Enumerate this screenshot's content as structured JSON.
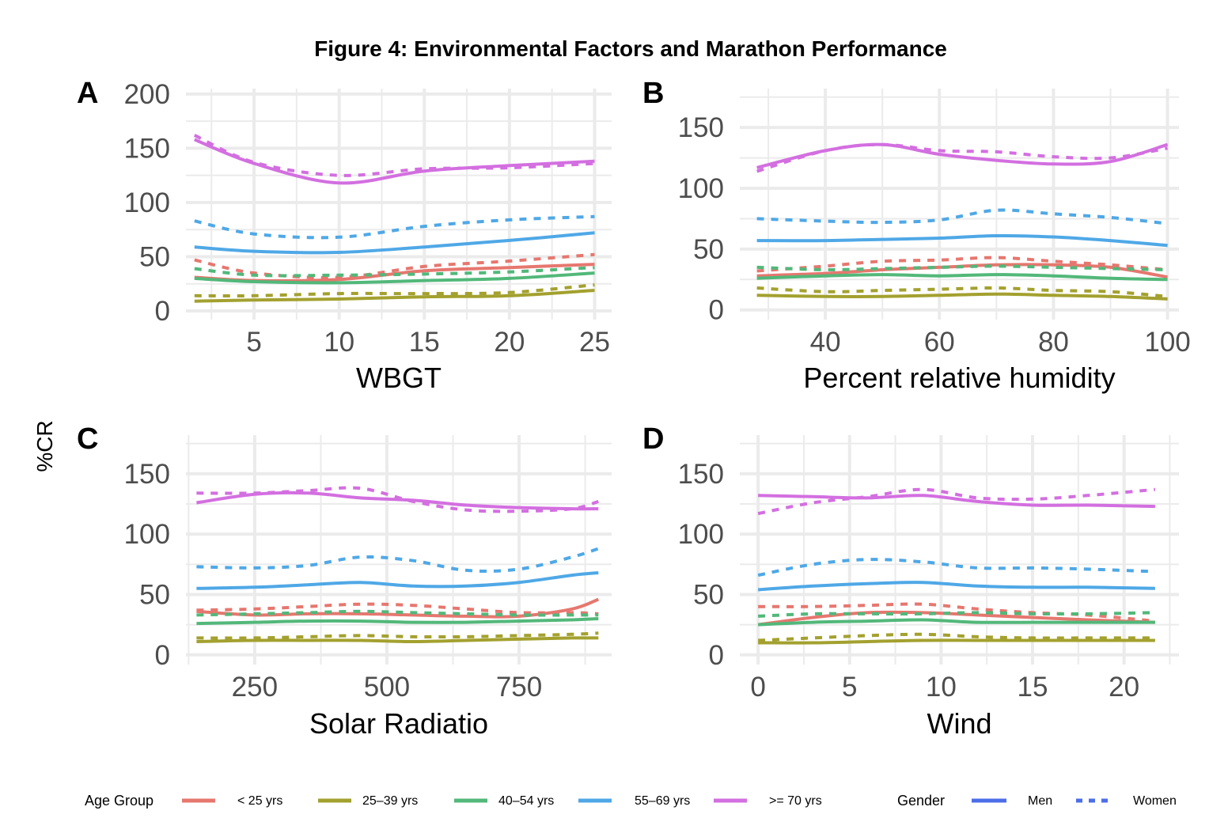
{
  "title": "Figure 4: Environmental Factors and Marathon Performance",
  "y_axis_label": "%CR",
  "colors": {
    "< 25 yrs": "#e6776f",
    "25–39 yrs": "#a3a12f",
    "40–54 yrs": "#52b87a",
    "55–69 yrs": "#4fa8e6",
    ">= 70 yrs": "#d36fe0",
    "gender_legend": "#4c6ee8"
  },
  "legend": {
    "age_title": "Age Group",
    "age_items": [
      "< 25 yrs",
      "25–39 yrs",
      "40–54 yrs",
      "55–69 yrs",
      ">= 70 yrs"
    ],
    "gender_title": "Gender",
    "gender_items": [
      {
        "label": "Men",
        "style": "solid"
      },
      {
        "label": "Women",
        "style": "dashed"
      }
    ]
  },
  "chart_data": [
    {
      "panel": "A",
      "type": "line",
      "xlabel": "WBGT",
      "xlim": [
        1,
        26
      ],
      "ylim": [
        -8,
        205
      ],
      "xticks": [
        5,
        10,
        15,
        20,
        25
      ],
      "yticks": [
        0,
        50,
        100,
        150,
        200
      ],
      "x": [
        1.5,
        5,
        10,
        15,
        20,
        25
      ],
      "series": [
        {
          "group": "< 25 yrs",
          "gender": "Men",
          "values": [
            31,
            28,
            29,
            37,
            40,
            43
          ]
        },
        {
          "group": "< 25 yrs",
          "gender": "Women",
          "values": [
            47,
            35,
            31,
            41,
            46,
            52
          ]
        },
        {
          "group": "25–39 yrs",
          "gender": "Men",
          "values": [
            9,
            10,
            11,
            13,
            14,
            19
          ]
        },
        {
          "group": "25–39 yrs",
          "gender": "Women",
          "values": [
            14,
            14,
            16,
            16,
            17,
            24
          ]
        },
        {
          "group": "40–54 yrs",
          "gender": "Men",
          "values": [
            30,
            27,
            26,
            28,
            30,
            35
          ]
        },
        {
          "group": "40–54 yrs",
          "gender": "Women",
          "values": [
            39,
            33,
            33,
            34,
            36,
            40
          ]
        },
        {
          "group": "55–69 yrs",
          "gender": "Men",
          "values": [
            59,
            55,
            54,
            59,
            65,
            72
          ]
        },
        {
          "group": "55–69 yrs",
          "gender": "Women",
          "values": [
            83,
            71,
            68,
            78,
            84,
            87
          ]
        },
        {
          "group": ">= 70 yrs",
          "gender": "Men",
          "values": [
            158,
            136,
            118,
            129,
            134,
            138
          ]
        },
        {
          "group": ">= 70 yrs",
          "gender": "Women",
          "values": [
            162,
            137,
            125,
            131,
            132,
            136
          ]
        }
      ]
    },
    {
      "panel": "B",
      "type": "line",
      "xlabel": "Percent relative humidity",
      "xlim": [
        25,
        102
      ],
      "ylim": [
        -8,
        182
      ],
      "xticks": [
        40,
        60,
        80,
        100
      ],
      "yticks": [
        0,
        50,
        100,
        150
      ],
      "x": [
        28,
        40,
        50,
        60,
        70,
        80,
        90,
        100
      ],
      "series": [
        {
          "group": "< 25 yrs",
          "gender": "Men",
          "values": [
            28,
            30,
            33,
            35,
            37,
            37,
            35,
            27
          ]
        },
        {
          "group": "< 25 yrs",
          "gender": "Women",
          "values": [
            32,
            36,
            40,
            41,
            43,
            40,
            37,
            33
          ]
        },
        {
          "group": "25–39 yrs",
          "gender": "Men",
          "values": [
            12,
            11,
            11,
            12,
            13,
            12,
            11,
            9
          ]
        },
        {
          "group": "25–39 yrs",
          "gender": "Women",
          "values": [
            18,
            15,
            16,
            17,
            18,
            16,
            15,
            11
          ]
        },
        {
          "group": "40–54 yrs",
          "gender": "Men",
          "values": [
            26,
            28,
            29,
            28,
            29,
            28,
            26,
            25
          ]
        },
        {
          "group": "40–54 yrs",
          "gender": "Women",
          "values": [
            35,
            33,
            34,
            35,
            36,
            35,
            34,
            33
          ]
        },
        {
          "group": "55–69 yrs",
          "gender": "Men",
          "values": [
            57,
            57,
            58,
            59,
            61,
            60,
            57,
            53
          ]
        },
        {
          "group": "55–69 yrs",
          "gender": "Women",
          "values": [
            75,
            73,
            72,
            74,
            82,
            79,
            76,
            71
          ]
        },
        {
          "group": ">= 70 yrs",
          "gender": "Men",
          "values": [
            117,
            131,
            136,
            128,
            123,
            120,
            122,
            136
          ]
        },
        {
          "group": ">= 70 yrs",
          "gender": "Women",
          "values": [
            114,
            131,
            136,
            131,
            130,
            126,
            125,
            133
          ]
        }
      ]
    },
    {
      "panel": "C",
      "type": "line",
      "xlabel": "Solar Radiatio",
      "xlim": [
        120,
        925
      ],
      "ylim": [
        -8,
        182
      ],
      "xticks": [
        250,
        500,
        750
      ],
      "yticks": [
        0,
        50,
        100,
        150
      ],
      "x": [
        140,
        250,
        350,
        450,
        550,
        650,
        750,
        850,
        900
      ],
      "series": [
        {
          "group": "< 25 yrs",
          "gender": "Men",
          "values": [
            36,
            33,
            34,
            34,
            33,
            32,
            32,
            38,
            46
          ]
        },
        {
          "group": "< 25 yrs",
          "gender": "Women",
          "values": [
            37,
            38,
            40,
            42,
            41,
            38,
            35,
            35,
            34
          ]
        },
        {
          "group": "25–39 yrs",
          "gender": "Men",
          "values": [
            11,
            12,
            12,
            12,
            11,
            12,
            13,
            14,
            14
          ]
        },
        {
          "group": "25–39 yrs",
          "gender": "Women",
          "values": [
            14,
            14,
            15,
            16,
            15,
            15,
            16,
            17,
            18
          ]
        },
        {
          "group": "40–54 yrs",
          "gender": "Men",
          "values": [
            26,
            27,
            28,
            28,
            27,
            27,
            28,
            29,
            30
          ]
        },
        {
          "group": "40–54 yrs",
          "gender": "Women",
          "values": [
            33,
            34,
            35,
            36,
            35,
            34,
            33,
            33,
            33
          ]
        },
        {
          "group": "55–69 yrs",
          "gender": "Men",
          "values": [
            55,
            56,
            58,
            60,
            57,
            57,
            60,
            66,
            68
          ]
        },
        {
          "group": "55–69 yrs",
          "gender": "Women",
          "values": [
            73,
            72,
            74,
            81,
            78,
            70,
            71,
            81,
            88
          ]
        },
        {
          "group": ">= 70 yrs",
          "gender": "Men",
          "values": [
            126,
            133,
            134,
            130,
            128,
            124,
            122,
            121,
            121
          ]
        },
        {
          "group": ">= 70 yrs",
          "gender": "Women",
          "values": [
            134,
            134,
            136,
            138,
            127,
            120,
            119,
            121,
            127
          ]
        }
      ]
    },
    {
      "panel": "D",
      "type": "line",
      "xlabel": "Wind",
      "xlim": [
        -1,
        23
      ],
      "ylim": [
        -8,
        182
      ],
      "xticks": [
        0,
        5,
        10,
        15,
        20
      ],
      "yticks": [
        0,
        50,
        100,
        150
      ],
      "x": [
        0,
        3,
        6,
        9,
        12,
        15,
        18,
        21.7
      ],
      "series": [
        {
          "group": "< 25 yrs",
          "gender": "Men",
          "values": [
            25,
            31,
            35,
            35,
            33,
            31,
            29,
            27
          ]
        },
        {
          "group": "< 25 yrs",
          "gender": "Women",
          "values": [
            40,
            40,
            41,
            42,
            38,
            35,
            33,
            28
          ]
        },
        {
          "group": "25–39 yrs",
          "gender": "Men",
          "values": [
            10,
            10,
            11,
            12,
            12,
            12,
            12,
            12
          ]
        },
        {
          "group": "25–39 yrs",
          "gender": "Women",
          "values": [
            12,
            14,
            16,
            17,
            15,
            14,
            14,
            14
          ]
        },
        {
          "group": "40–54 yrs",
          "gender": "Men",
          "values": [
            25,
            27,
            28,
            29,
            27,
            27,
            27,
            27
          ]
        },
        {
          "group": "40–54 yrs",
          "gender": "Women",
          "values": [
            32,
            34,
            34,
            34,
            35,
            34,
            34,
            35
          ]
        },
        {
          "group": "55–69 yrs",
          "gender": "Men",
          "values": [
            54,
            57,
            59,
            60,
            57,
            56,
            56,
            55
          ]
        },
        {
          "group": "55–69 yrs",
          "gender": "Women",
          "values": [
            66,
            75,
            79,
            77,
            72,
            72,
            71,
            69
          ]
        },
        {
          "group": ">= 70 yrs",
          "gender": "Men",
          "values": [
            132,
            131,
            130,
            132,
            127,
            124,
            124,
            123
          ]
        },
        {
          "group": ">= 70 yrs",
          "gender": "Women",
          "values": [
            117,
            126,
            131,
            137,
            130,
            129,
            132,
            137
          ]
        }
      ]
    }
  ]
}
